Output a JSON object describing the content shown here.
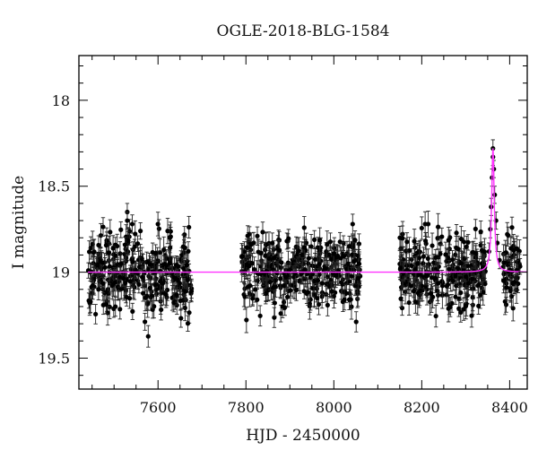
{
  "chart_data": {
    "type": "scatter",
    "title": "OGLE-2018-BLG-1584",
    "xlabel": "HJD - 2450000",
    "ylabel": "I magnitude",
    "xlim": [
      7420,
      8440
    ],
    "ylim": [
      19.68,
      17.74
    ],
    "y_inverted": true,
    "x_ticks": [
      7600,
      7800,
      8000,
      8200,
      8400
    ],
    "y_ticks": [
      18,
      18.5,
      19,
      19.5
    ],
    "x_tick_labels": [
      "7600",
      "7800",
      "8000",
      "8200",
      "8400"
    ],
    "y_tick_labels": [
      "18",
      "18.5",
      "19",
      "19.5"
    ],
    "grid": false,
    "colors": {
      "points": "#000000",
      "errorbars": "#222222",
      "model": "#ff33ff",
      "frame": "#000000"
    },
    "series": [
      {
        "kind": "observations",
        "segments": [
          {
            "x_range": [
              7440,
              7680
            ],
            "baseline": 19.0,
            "scatter": 0.14,
            "typical_error": 0.06
          },
          {
            "x_range": [
              7790,
              8060
            ],
            "baseline": 19.0,
            "scatter": 0.13,
            "typical_error": 0.06
          },
          {
            "x_range": [
              8150,
              8425
            ],
            "baseline": 19.0,
            "scatter": 0.12,
            "typical_error": 0.06
          }
        ],
        "highlights": [
          {
            "x": 7530,
            "y": 18.65
          },
          {
            "x": 7530,
            "y": 18.7
          },
          {
            "x": 8362,
            "y": 18.28
          },
          {
            "x": 8362,
            "y": 18.33
          },
          {
            "x": 8364,
            "y": 18.4
          },
          {
            "x": 8360,
            "y": 18.45
          },
          {
            "x": 8366,
            "y": 18.55
          },
          {
            "x": 8358,
            "y": 18.62
          },
          {
            "x": 8369,
            "y": 18.7
          },
          {
            "x": 8356,
            "y": 18.75
          },
          {
            "x": 8372,
            "y": 18.83
          },
          {
            "x": 8353,
            "y": 18.88
          },
          {
            "x": 8377,
            "y": 18.93
          }
        ]
      },
      {
        "kind": "model",
        "baseline": 19.0,
        "t0": 8362,
        "peak_mag": 18.28,
        "tE": 6,
        "x_range": [
          7440,
          8440
        ]
      }
    ]
  }
}
